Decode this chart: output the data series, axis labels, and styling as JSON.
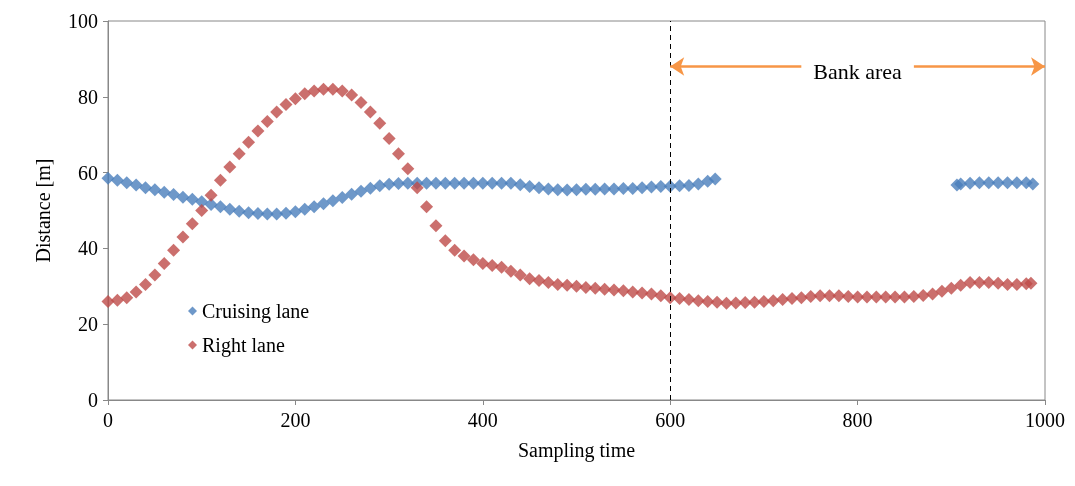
{
  "chart_data": {
    "type": "scatter",
    "xlabel": "Sampling time",
    "ylabel": "Distance [m]",
    "xlim": [
      0,
      1000
    ],
    "xticks": [
      0,
      200,
      400,
      600,
      800,
      1000
    ],
    "ylim": [
      0,
      100
    ],
    "yticks": [
      0,
      20,
      40,
      60,
      80,
      100
    ],
    "grid": false,
    "legend": "bottom left",
    "marker": "diamond",
    "ref_lines": [
      {
        "axis": "x",
        "value": 600,
        "color": "#000000",
        "line_style": "dashed"
      }
    ],
    "annotations": [
      "Bank area"
    ],
    "series": [
      {
        "name": "Cruising lane",
        "color": "#4a7ebb",
        "x": [
          0,
          10,
          20,
          30,
          40,
          50,
          60,
          70,
          80,
          90,
          100,
          110,
          120,
          130,
          140,
          150,
          160,
          170,
          180,
          190,
          200,
          210,
          220,
          230,
          240,
          250,
          260,
          270,
          280,
          290,
          300,
          310,
          320,
          330,
          340,
          350,
          360,
          370,
          380,
          390,
          400,
          410,
          420,
          430,
          440,
          450,
          460,
          470,
          480,
          490,
          500,
          510,
          520,
          530,
          540,
          550,
          560,
          570,
          580,
          590,
          600,
          610,
          620,
          630,
          640,
          648,
          906,
          910,
          920,
          930,
          940,
          950,
          960,
          970,
          980,
          987
        ],
        "values": [
          58.5,
          58,
          57.3,
          56.7,
          56,
          55.5,
          54.8,
          54.2,
          53.5,
          53,
          52.3,
          51.6,
          51,
          50.3,
          49.8,
          49.4,
          49.2,
          49.1,
          49.1,
          49.3,
          49.7,
          50.3,
          51,
          51.8,
          52.6,
          53.4,
          54.3,
          55.1,
          55.9,
          56.5,
          56.9,
          57.1,
          57.2,
          57.2,
          57.2,
          57.2,
          57.2,
          57.2,
          57.2,
          57.2,
          57.2,
          57.2,
          57.2,
          57.2,
          56.8,
          56.3,
          56,
          55.7,
          55.5,
          55.4,
          55.5,
          55.6,
          55.6,
          55.7,
          55.7,
          55.8,
          55.8,
          56,
          56.2,
          56.3,
          56.4,
          56.5,
          56.6,
          57,
          57.7,
          58.3,
          56.7,
          57,
          57.2,
          57.3,
          57.3,
          57.3,
          57.3,
          57.3,
          57.3,
          57
        ]
      },
      {
        "name": "Right lane",
        "color": "#be4b48",
        "x": [
          0,
          10,
          20,
          30,
          40,
          50,
          60,
          70,
          80,
          90,
          100,
          110,
          120,
          130,
          140,
          150,
          160,
          170,
          180,
          190,
          200,
          210,
          220,
          230,
          240,
          250,
          260,
          270,
          280,
          290,
          300,
          310,
          320,
          330,
          340,
          350,
          360,
          370,
          380,
          390,
          400,
          410,
          420,
          430,
          440,
          450,
          460,
          470,
          480,
          490,
          500,
          510,
          520,
          530,
          540,
          550,
          560,
          570,
          580,
          590,
          600,
          610,
          620,
          630,
          640,
          650,
          660,
          670,
          680,
          690,
          700,
          710,
          720,
          730,
          740,
          750,
          760,
          770,
          780,
          790,
          800,
          810,
          820,
          830,
          840,
          850,
          860,
          870,
          880,
          890,
          900,
          910,
          920,
          930,
          940,
          950,
          960,
          970,
          980,
          985
        ],
        "values": [
          26,
          26.3,
          27,
          28.5,
          30.5,
          33,
          36,
          39.5,
          43,
          46.5,
          50,
          54,
          58,
          61.5,
          65,
          68,
          71,
          73.5,
          76,
          78,
          79.5,
          80.8,
          81.5,
          82,
          82,
          81.5,
          80.5,
          78.5,
          76,
          73,
          69,
          65,
          61,
          56,
          51,
          46,
          42,
          39.5,
          38,
          37,
          36,
          35.5,
          35,
          34,
          33,
          32,
          31.5,
          31,
          30.5,
          30.3,
          30,
          29.7,
          29.5,
          29.2,
          29,
          28.8,
          28.5,
          28.2,
          28,
          27.5,
          27,
          26.8,
          26.5,
          26.2,
          26,
          25.8,
          25.5,
          25.6,
          25.7,
          25.8,
          26,
          26.2,
          26.5,
          26.8,
          27,
          27.3,
          27.5,
          27.5,
          27.5,
          27.3,
          27.2,
          27.2,
          27.2,
          27.2,
          27.2,
          27.2,
          27.3,
          27.6,
          28,
          28.7,
          29.5,
          30.3,
          31,
          31,
          31,
          30.8,
          30.5,
          30.5,
          30.7,
          30.8
        ]
      }
    ]
  }
}
